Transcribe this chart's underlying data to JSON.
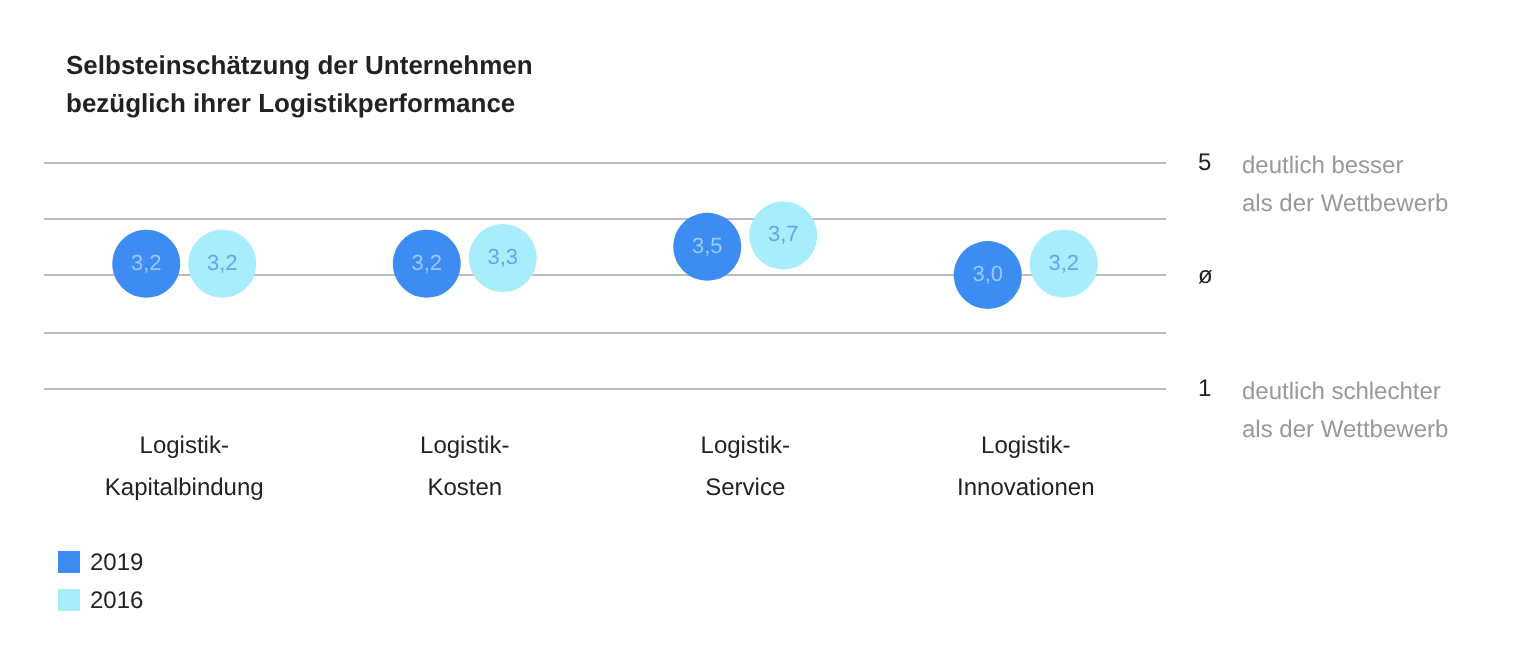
{
  "chart_data": {
    "type": "scatter",
    "title": "Selbsteinschätzung der Unternehmen\nbezüglich ihrer Logistikperformance",
    "categories": [
      "Logistik-\nKapitalbindung",
      "Logistik-\nKosten",
      "Logistik-\nService",
      "Logistik-\nInnovationen"
    ],
    "series": [
      {
        "name": "2019",
        "color": "#3d8cf2",
        "values": [
          3.2,
          3.2,
          3.5,
          3.0
        ],
        "value_labels": [
          "3,2",
          "3,2",
          "3,5",
          "3,0"
        ]
      },
      {
        "name": "2016",
        "color": "#a8edfb",
        "values": [
          3.2,
          3.3,
          3.7,
          3.2
        ],
        "value_labels": [
          "3,2",
          "3,3",
          "3,7",
          "3,2"
        ]
      }
    ],
    "ylim": [
      1,
      5
    ],
    "yticks": [
      {
        "value": 1,
        "label": "1"
      },
      {
        "value": 2,
        "label": null
      },
      {
        "value": 3,
        "label": "ø"
      },
      {
        "value": 4,
        "label": null
      },
      {
        "value": 5,
        "label": "5"
      }
    ],
    "annotations": [
      "deutlich besser\nals der Wettbewerb",
      "deutlich schlechter\nals der Wettbewerb"
    ],
    "grid": "y",
    "legend": "bottom left",
    "marker": "circle"
  }
}
